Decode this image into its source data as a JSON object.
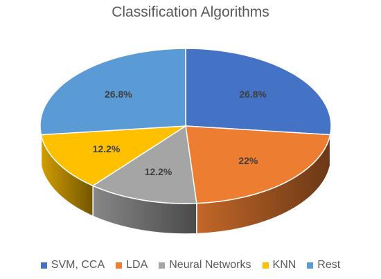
{
  "chart_data": {
    "type": "pie",
    "title": "Classification Algorithms",
    "categories": [
      "SVM, CCA",
      "LDA",
      "Neural Networks",
      "KNN",
      "Rest"
    ],
    "values": [
      26.8,
      22,
      12.2,
      12.2,
      26.8
    ],
    "data_labels": [
      "26.8%",
      "22%",
      "12.2%",
      "12.2%",
      "26.8%"
    ],
    "colors": [
      "#4472C4",
      "#ED7D31",
      "#A5A5A5",
      "#FFC000",
      "#5B9BD5"
    ],
    "style": "3d",
    "legend_position": "bottom"
  }
}
